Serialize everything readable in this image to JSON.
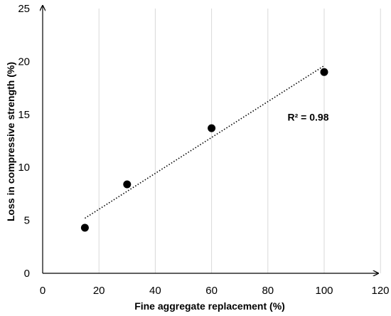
{
  "chart_data": {
    "type": "scatter",
    "xlabel": "Fine aggregate replacement (%)",
    "ylabel": "Loss in compressive strength (%)",
    "xlim": [
      0,
      120
    ],
    "ylim": [
      0,
      25
    ],
    "xticks": [
      0,
      20,
      40,
      60,
      80,
      100,
      120
    ],
    "yticks": [
      0,
      5,
      10,
      15,
      20,
      25
    ],
    "grid": "vertical",
    "series": [
      {
        "x": [
          15,
          30,
          60,
          100
        ],
        "y": [
          4.3,
          8.4,
          13.7,
          19.0
        ],
        "marker_color": "#000000"
      }
    ],
    "trendline": {
      "type": "linear",
      "style": "dotted",
      "x_range": [
        15,
        100
      ],
      "y_range": [
        5.2,
        19.6
      ]
    },
    "annotations": [
      {
        "text": "R² = 0.98",
        "x": 87,
        "y": 14.4
      }
    ]
  }
}
